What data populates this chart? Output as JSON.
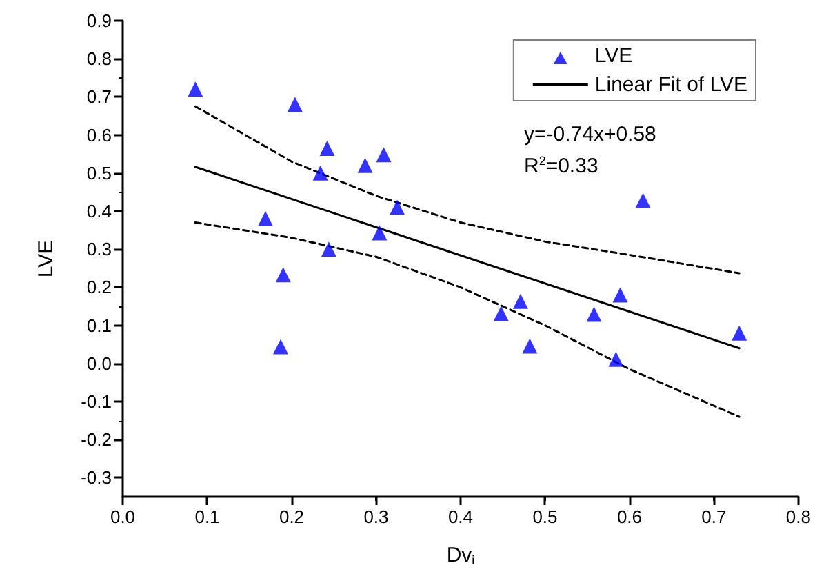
{
  "chart_data": {
    "type": "scatter",
    "xlabel": "Dv$_{i}$",
    "ylabel": "LVE",
    "xlim": [
      0.0,
      0.8
    ],
    "xticks": [
      {
        "value": 0,
        "label": "0.0"
      },
      0.1,
      0.2,
      0.3,
      0.4,
      0.5,
      0.6,
      0.7,
      0.8
    ],
    "ylim": [
      -0.35,
      0.9
    ],
    "yticks": [
      -0.3,
      -0.2,
      -0.1,
      {
        "value": 0,
        "label": "0.0"
      },
      0.1,
      0.2,
      0.3,
      0.4,
      0.5,
      0.6,
      0.7,
      0.8,
      0.9
    ],
    "legend": "top right",
    "marker": "triangle",
    "annotations": [
      "y=-0.74x+0.58",
      "R$^{2}$=0.33"
    ],
    "series": [
      {
        "name": "LVE",
        "color": "#0000ff",
        "x": [
          0.086,
          0.204,
          0.242,
          0.234,
          0.287,
          0.309,
          0.325,
          0.304,
          0.169,
          0.244,
          0.19,
          0.187,
          0.616,
          0.589,
          0.471,
          0.448,
          0.558,
          0.482,
          0.584,
          0.73
        ],
        "values": [
          0.72,
          0.68,
          0.565,
          0.5,
          0.52,
          0.548,
          0.41,
          0.343,
          0.38,
          0.3,
          0.233,
          0.044,
          0.428,
          0.18,
          0.163,
          0.131,
          0.129,
          0.046,
          0.011,
          0.08
        ]
      },
      {
        "name": "Linear Fit of LVE",
        "type": "line",
        "color": "#000000",
        "marker": "none",
        "line_style": "solid",
        "x": [
          0.086,
          0.73
        ],
        "values": [
          0.516,
          0.04
        ]
      },
      {
        "type": "line",
        "color": "#000000",
        "marker": "none",
        "line_style": "dashed",
        "x": [
          0.086,
          0.2,
          0.3,
          0.4,
          0.5,
          0.6,
          0.73
        ],
        "values": [
          0.675,
          0.53,
          0.44,
          0.37,
          0.32,
          0.285,
          0.237
        ]
      },
      {
        "type": "line",
        "color": "#000000",
        "marker": "none",
        "line_style": "dashed",
        "x": [
          0.086,
          0.2,
          0.3,
          0.4,
          0.5,
          0.6,
          0.73
        ],
        "values": [
          0.37,
          0.33,
          0.28,
          0.2,
          0.1,
          -0.015,
          -0.14
        ]
      }
    ]
  }
}
